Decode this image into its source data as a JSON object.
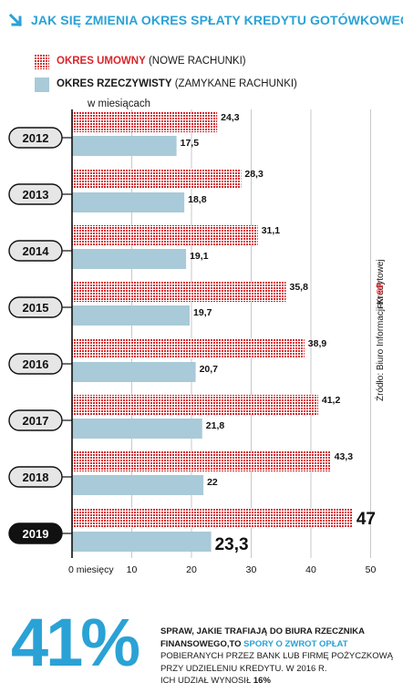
{
  "title": "JAK SIĘ ZMIENIA OKRES SPŁATY KREDYTU GOTÓWKOWEGO",
  "legend": [
    {
      "bold": "OKRES UMOWNY",
      "rest": " (NOWE RACHUNKI)",
      "color": "#d9262c"
    },
    {
      "bold": "OKRES RZECZYWISTY",
      "rest": " (ZAMYKANE RACHUNKI)",
      "color": "#a9cad8"
    }
  ],
  "unit_label": "w miesiącach",
  "source": "Źródło: Biuro Informacji Kredytowej",
  "credit": "RM",
  "credit_mark": "©P",
  "stat": {
    "big": "41%",
    "line1_a": "SPRAW, JAKIE TRAFIAJĄ DO BIURA RZECZNIKA",
    "line2_a": "FINANSOWEGO,TO ",
    "line2_highlight": "SPORY O ZWROT OPŁAT",
    "line3": "POBIERANYCH PRZEZ BANK LUB FIRMĘ POŻYCZKOWĄ",
    "line4": "PRZY UDZIELENIU KREDYTU. W 2016 R.",
    "line5_a": "ICH UDZIAŁ WYNOSIŁ ",
    "line5_b": "16%"
  },
  "chart_data": {
    "type": "bar",
    "orientation": "horizontal",
    "categories": [
      "2012",
      "2013",
      "2014",
      "2015",
      "2016",
      "2017",
      "2018",
      "2019"
    ],
    "series": [
      {
        "name": "OKRES UMOWNY (NOWE RACHUNKI)",
        "values": [
          24.3,
          28.3,
          31.1,
          35.8,
          38.9,
          41.2,
          43.3,
          47
        ],
        "labels": [
          "24,3",
          "28,3",
          "31,1",
          "35,8",
          "38,9",
          "41,2",
          "43,3",
          "47"
        ],
        "color": "#d9262c"
      },
      {
        "name": "OKRES RZECZYWISTY (ZAMYKANE RACHUNKI)",
        "values": [
          17.5,
          18.8,
          19.1,
          19.7,
          20.7,
          21.8,
          22,
          23.3
        ],
        "labels": [
          "17,5",
          "18,8",
          "19,1",
          "19,7",
          "20,7",
          "21,8",
          "22",
          "23,3"
        ],
        "color": "#a9cad8"
      }
    ],
    "xlim": [
      0,
      50
    ],
    "ticks": [
      0,
      10,
      20,
      30,
      40,
      50
    ],
    "tick_labels": [
      "0 miesięcy",
      "10",
      "20",
      "30",
      "40",
      "50"
    ],
    "highlight_category": "2019",
    "grid": true
  }
}
